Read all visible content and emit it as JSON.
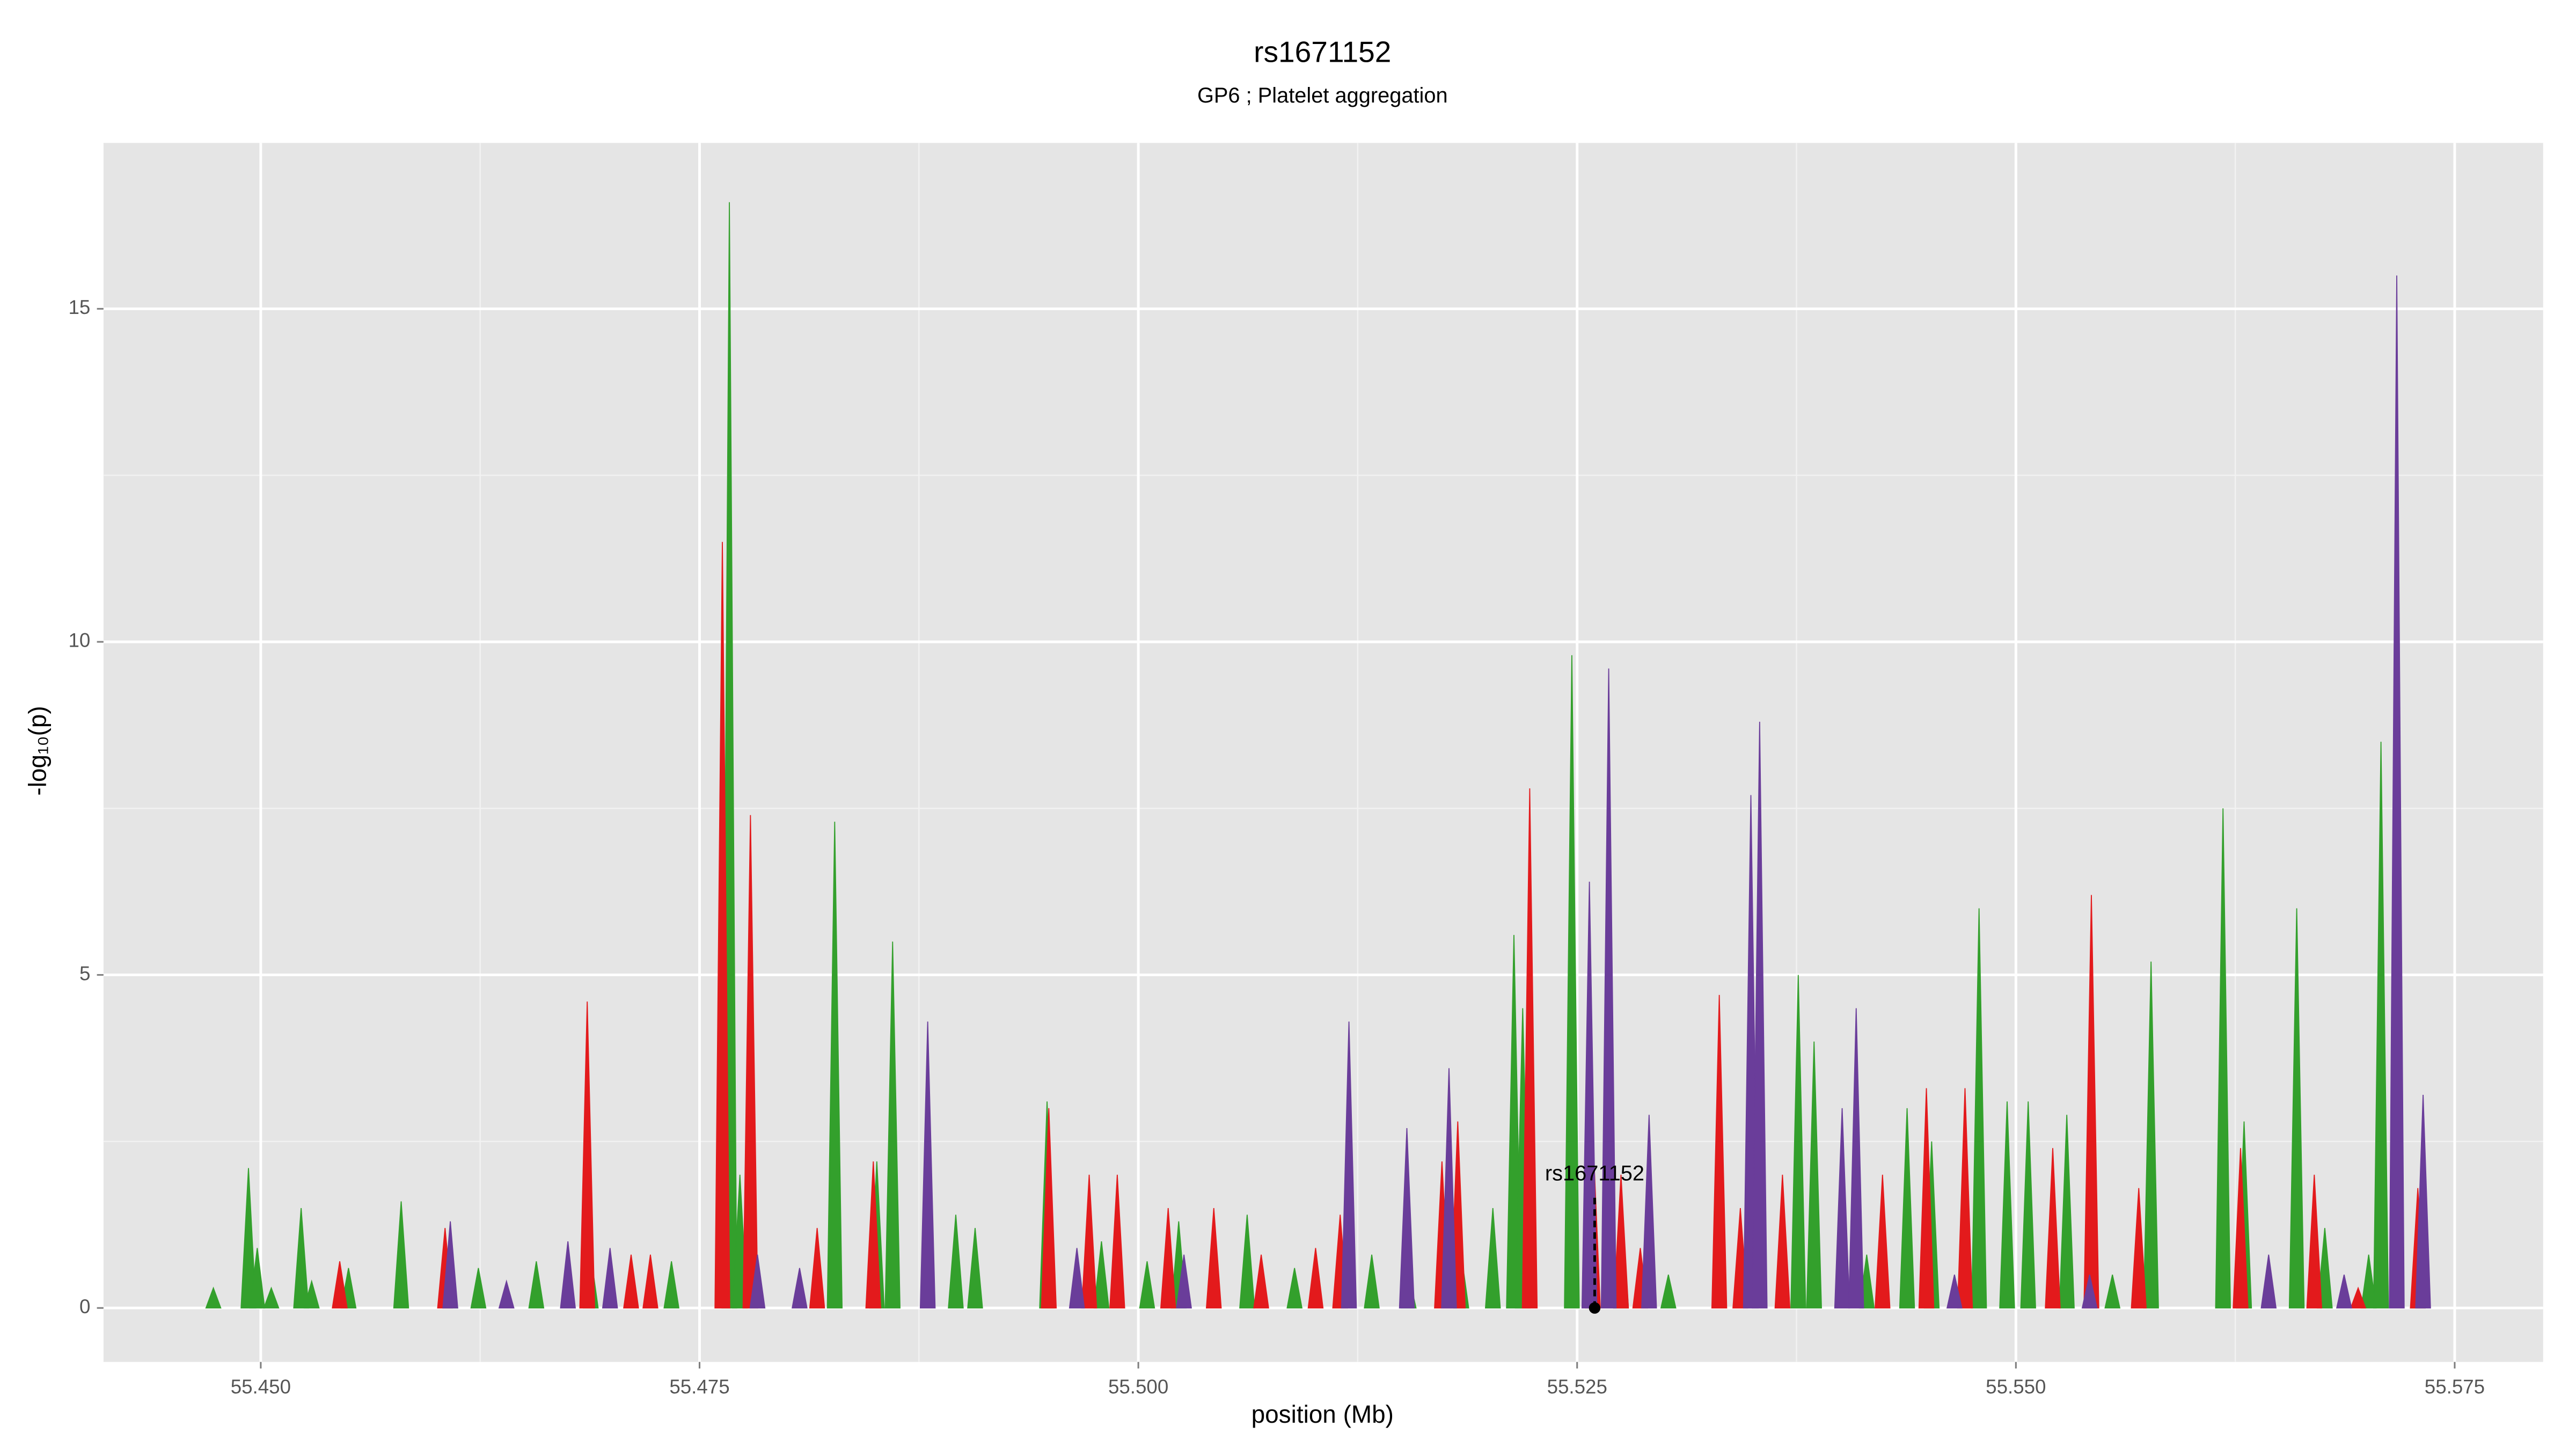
{
  "chart_data": {
    "type": "area",
    "title": "rs1671152",
    "subtitle": "GP6 ; Platelet aggregation",
    "x_label": "position (Mb)",
    "y_label": "-log₁₀(p)",
    "xlim": [
      55.44104,
      55.58004
    ],
    "ylim": [
      -0.81,
      17.49
    ],
    "xticks": [
      {
        "value": 55.45,
        "label": "55.450"
      },
      {
        "value": 55.475,
        "label": "55.475"
      },
      {
        "value": 55.5,
        "label": "55.500"
      },
      {
        "value": 55.525,
        "label": "55.525"
      },
      {
        "value": 55.55,
        "label": "55.550"
      },
      {
        "value": 55.575,
        "label": "55.575"
      }
    ],
    "yticks": [
      0,
      5,
      10,
      15
    ],
    "grid": true,
    "series": [
      {
        "color": "#33a02c",
        "x": [
          55.4473,
          55.4493,
          55.4498,
          55.4506,
          55.4523,
          55.4529,
          55.455,
          55.458,
          55.4608,
          55.4624,
          55.4657,
          55.4688,
          55.4734,
          55.4767,
          55.4773,
          55.4827,
          55.4851,
          55.486,
          55.4896,
          55.4907,
          55.4948,
          55.4979,
          55.5005,
          55.5023,
          55.5062,
          55.5089,
          55.5133,
          55.5154,
          55.5184,
          55.5202,
          55.5214,
          55.5219,
          55.5247,
          55.5275,
          55.5302,
          55.5376,
          55.5385,
          55.5415,
          55.5438,
          55.5452,
          55.5479,
          55.5495,
          55.5507,
          55.5529,
          55.5555,
          55.5577,
          55.5618,
          55.563,
          55.566,
          55.5676,
          55.5701,
          55.5708,
          55.5729
        ],
        "values": [
          0.3,
          2.1,
          0.9,
          0.3,
          1.5,
          0.4,
          0.6,
          1.6,
          0.5,
          0.6,
          0.7,
          0.8,
          0.7,
          16.6,
          2.0,
          7.3,
          2.2,
          5.5,
          1.4,
          1.2,
          3.1,
          1.0,
          0.7,
          1.3,
          1.4,
          0.6,
          0.8,
          0.5,
          0.8,
          1.5,
          5.6,
          4.5,
          9.8,
          1.7,
          0.5,
          5.0,
          4.0,
          0.8,
          3.0,
          2.5,
          6.0,
          3.1,
          3.1,
          2.9,
          0.5,
          5.2,
          7.5,
          2.8,
          6.0,
          1.2,
          0.8,
          8.5,
          0.6
        ]
      },
      {
        "color": "#e31a1c",
        "x": [
          55.4545,
          55.4605,
          55.4686,
          55.4711,
          55.4722,
          55.4763,
          55.4779,
          55.4817,
          55.4849,
          55.4949,
          55.4972,
          55.4988,
          55.5017,
          55.5043,
          55.507,
          55.5101,
          55.5115,
          55.5173,
          55.5182,
          55.5223,
          55.5259,
          55.5275,
          55.5286,
          55.5331,
          55.5343,
          55.5367,
          55.5424,
          55.5449,
          55.5471,
          55.5521,
          55.5543,
          55.557,
          55.5628,
          55.567,
          55.5695,
          55.5729
        ],
        "values": [
          0.7,
          1.2,
          4.6,
          0.8,
          0.8,
          11.5,
          7.4,
          1.2,
          2.2,
          3.0,
          2.0,
          2.0,
          1.5,
          1.5,
          0.8,
          0.9,
          1.4,
          2.2,
          2.8,
          7.8,
          2.6,
          2.0,
          0.9,
          4.7,
          1.5,
          2.0,
          2.0,
          3.3,
          3.3,
          2.4,
          6.2,
          1.8,
          2.4,
          2.0,
          0.3,
          1.8
        ]
      },
      {
        "color": "#6a3d9a",
        "x": [
          55.4608,
          55.464,
          55.4675,
          55.4699,
          55.4783,
          55.4807,
          55.488,
          55.4965,
          55.5026,
          55.512,
          55.5153,
          55.5177,
          55.5257,
          55.5268,
          55.5291,
          55.5349,
          55.5354,
          55.5401,
          55.5409,
          55.5465,
          55.5542,
          55.5644,
          55.5687,
          55.5717,
          55.5732
        ],
        "values": [
          1.3,
          0.4,
          1.0,
          0.9,
          0.8,
          0.6,
          4.3,
          0.9,
          0.8,
          4.3,
          2.7,
          3.6,
          6.4,
          9.6,
          2.9,
          7.7,
          8.8,
          3.0,
          4.5,
          0.5,
          0.5,
          0.8,
          0.5,
          15.5,
          3.2
        ]
      }
    ],
    "annotations": [
      {
        "text": "rs1671152",
        "x": 55.526,
        "y": 2.0
      }
    ]
  }
}
